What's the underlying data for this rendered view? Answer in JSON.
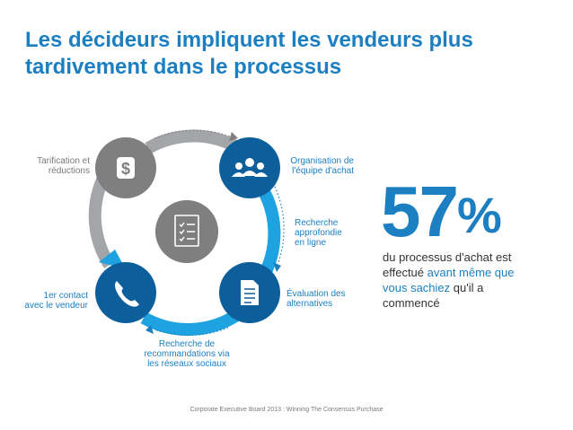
{
  "title": {
    "line1": "Les décideurs impliquent les vendeurs plus",
    "line2": "tardivement dans le processus"
  },
  "stages": {
    "pricing": {
      "line1": "Tarification et",
      "line2": "réductions",
      "icon": "dollar-icon"
    },
    "team": {
      "line1": "Organisation de",
      "line2": "l'équipe d'achat",
      "icon": "group-icon"
    },
    "research": {
      "line1": "Recherche",
      "line2": "approfondie",
      "line3": "en ligne"
    },
    "evaluation": {
      "line1": "Évaluation des",
      "line2": "alternatives",
      "icon": "document-icon"
    },
    "social": {
      "line1": "Recherche de",
      "line2": "recommandations via",
      "line3": "les réseaux sociaux"
    },
    "contact": {
      "line1": "1er contact",
      "line2": "avec le vendeur",
      "icon": "phone-icon"
    },
    "center": {
      "icon": "checklist-icon"
    }
  },
  "stat": {
    "value": "57",
    "unit": "%",
    "line1": "du processus d'achat est",
    "line2_pre": "effectué ",
    "line2_hl": "avant même que",
    "line3_hl": "vous sachiez",
    "line3_post": " qu'il a",
    "line4": "commencé"
  },
  "source": "Corporate Executive Board 2013 : Winning The Consensus Purchase",
  "colors": {
    "blue": "#1b7fc2",
    "dark_blue": "#0d5f9c",
    "light_blue": "#1fa3e0",
    "grey": "#7f7f80",
    "light_grey": "#a3a5a8"
  }
}
